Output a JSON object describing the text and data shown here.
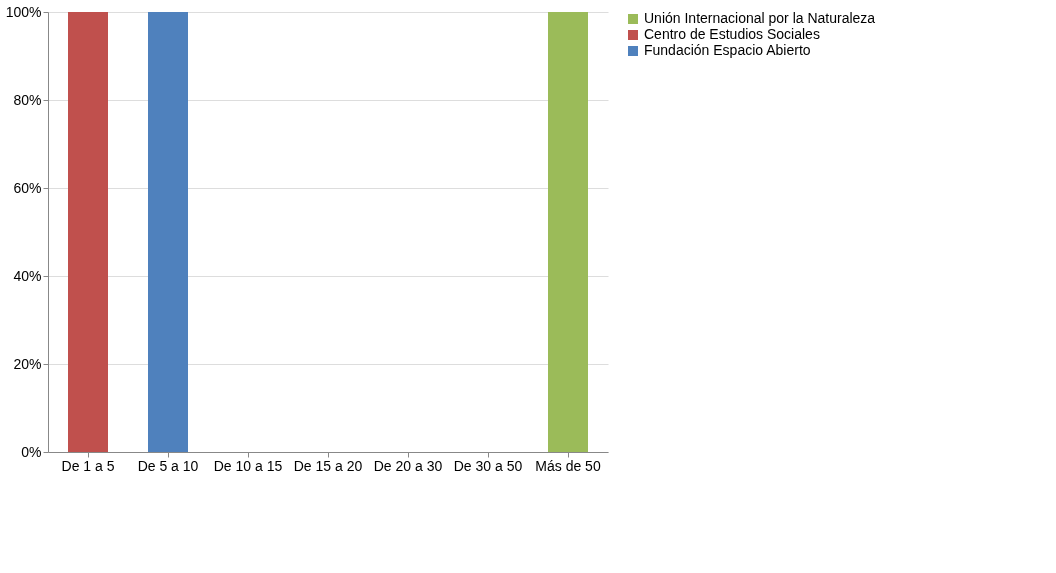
{
  "chart_data": {
    "type": "bar",
    "stacked": true,
    "categories": [
      "De 1 a 5",
      "De 5 a 10",
      "De 10 a 15",
      "De 15 a 20",
      "De 20 a 30",
      "De 30 a 50",
      "Más de 50"
    ],
    "series": [
      {
        "name": "Fundación Espacio Abierto",
        "color": "#4f81bd",
        "values": [
          0,
          100,
          0,
          0,
          0,
          0,
          0
        ]
      },
      {
        "name": "Centro de Estudios Sociales",
        "color": "#c0504d",
        "values": [
          100,
          0,
          0,
          0,
          0,
          0,
          0
        ]
      },
      {
        "name": "Unión Internacional por la Naturaleza",
        "color": "#9bbb59",
        "values": [
          0,
          0,
          0,
          0,
          0,
          0,
          100
        ]
      }
    ],
    "ylim": [
      0,
      100
    ],
    "yticks": [
      {
        "value": 0,
        "label": "0%"
      },
      {
        "value": 20,
        "label": "20%"
      },
      {
        "value": 40,
        "label": "40%"
      },
      {
        "value": 60,
        "label": "60%"
      },
      {
        "value": 80,
        "label": "80%"
      },
      {
        "value": 100,
        "label": "100%"
      }
    ],
    "grid": "y",
    "legend": "right"
  }
}
